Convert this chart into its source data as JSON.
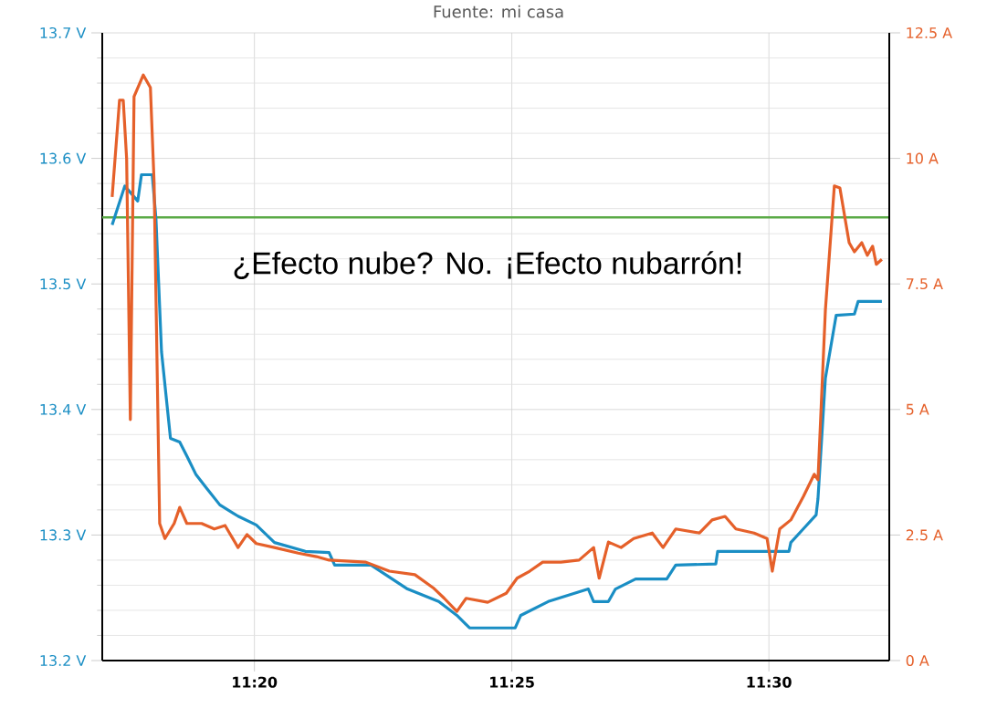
{
  "chart_data": {
    "type": "line",
    "annotations": [
      "Fuente: mi casa",
      "¿Efecto nube? No. ¡Efecto nubarrón!"
    ],
    "xlim": [
      11.284,
      11.539
    ],
    "xticks": [
      {
        "value": 11.3333,
        "label": "11:20"
      },
      {
        "value": 11.4167,
        "label": "11:25"
      },
      {
        "value": 11.5,
        "label": "11:30"
      }
    ],
    "ylim": [
      13.2,
      13.7
    ],
    "yticks": [
      {
        "value": 13.2,
        "label": "13.2 V"
      },
      {
        "value": 13.3,
        "label": "13.3 V"
      },
      {
        "value": 13.4,
        "label": "13.4 V"
      },
      {
        "value": 13.5,
        "label": "13.5 V"
      },
      {
        "value": 13.6,
        "label": "13.6 V"
      },
      {
        "value": 13.7,
        "label": "13.7 V"
      }
    ],
    "y2lim": [
      0,
      12.5
    ],
    "y2ticks": [
      {
        "value": 0,
        "label": "0 A"
      },
      {
        "value": 2.5,
        "label": "2.5 A"
      },
      {
        "value": 5,
        "label": "5 A"
      },
      {
        "value": 7.5,
        "label": "7.5 A"
      },
      {
        "value": 10,
        "label": "10 A"
      },
      {
        "value": 12.5,
        "label": "12.5 A"
      }
    ],
    "grid": true,
    "ref_lines": [
      {
        "axis": "y",
        "value": 13.553,
        "color": "#5aaa46"
      }
    ],
    "series": [
      {
        "color": "#1a8ec4",
        "x": [
          11.2872,
          11.2913,
          11.2955,
          11.2967,
          11.3002,
          11.3014,
          11.3032,
          11.3061,
          11.3091,
          11.3114,
          11.3144,
          11.3179,
          11.3221,
          11.328,
          11.3339,
          11.3398,
          11.3498,
          11.3575,
          11.3593,
          11.3711,
          11.3829,
          11.393,
          11.3989,
          11.403,
          11.4178,
          11.4196,
          11.4285,
          11.4415,
          11.4432,
          11.448,
          11.4503,
          11.4568,
          11.4669,
          11.4698,
          11.4828,
          11.4834,
          11.5065,
          11.5071,
          11.5112,
          11.5153,
          11.5159,
          11.5183,
          11.5218,
          11.5277,
          11.5289,
          11.5366
        ],
        "values": [
          13.547,
          13.578,
          13.566,
          13.587,
          13.587,
          13.552,
          13.446,
          13.377,
          13.374,
          13.363,
          13.348,
          13.337,
          13.324,
          13.315,
          13.308,
          13.294,
          13.287,
          13.286,
          13.276,
          13.276,
          13.257,
          13.247,
          13.236,
          13.226,
          13.226,
          13.236,
          13.247,
          13.257,
          13.247,
          13.247,
          13.257,
          13.265,
          13.265,
          13.276,
          13.277,
          13.287,
          13.287,
          13.294,
          13.305,
          13.316,
          13.329,
          13.425,
          13.475,
          13.476,
          13.486,
          13.486
        ]
      },
      {
        "color": "#e5602a",
        "axis": "y2",
        "x": [
          11.2872,
          11.2896,
          11.2908,
          11.2919,
          11.2931,
          11.2943,
          11.2973,
          11.2996,
          11.3008,
          11.3026,
          11.3043,
          11.3073,
          11.3091,
          11.3114,
          11.3162,
          11.3203,
          11.3238,
          11.328,
          11.3309,
          11.3339,
          11.3398,
          11.3475,
          11.3534,
          11.3575,
          11.3694,
          11.377,
          11.3853,
          11.3912,
          11.3948,
          11.3989,
          11.4019,
          11.4089,
          11.4149,
          11.4184,
          11.4225,
          11.4267,
          11.4326,
          11.4385,
          11.4432,
          11.445,
          11.448,
          11.4521,
          11.4562,
          11.4622,
          11.4657,
          11.4698,
          11.4775,
          11.4816,
          11.4858,
          11.4893,
          11.4952,
          11.4994,
          11.5011,
          11.5035,
          11.5071,
          11.5112,
          11.5147,
          11.5159,
          11.5183,
          11.5212,
          11.523,
          11.526,
          11.5277,
          11.5301,
          11.5319,
          11.5336,
          11.5348,
          11.5366
        ],
        "values": [
          9.23,
          11.16,
          11.16,
          9.99,
          4.8,
          11.23,
          11.66,
          11.41,
          9.52,
          2.73,
          2.43,
          2.73,
          3.05,
          2.73,
          2.73,
          2.62,
          2.69,
          2.25,
          2.51,
          2.33,
          2.25,
          2.14,
          2.07,
          2.0,
          1.96,
          1.78,
          1.71,
          1.45,
          1.24,
          0.98,
          1.24,
          1.16,
          1.34,
          1.64,
          1.78,
          1.96,
          1.96,
          2.0,
          2.25,
          1.64,
          2.36,
          2.25,
          2.43,
          2.54,
          2.25,
          2.62,
          2.54,
          2.8,
          2.87,
          2.62,
          2.54,
          2.43,
          1.78,
          2.62,
          2.8,
          3.27,
          3.71,
          3.6,
          6.98,
          9.45,
          9.41,
          8.32,
          8.14,
          8.32,
          8.07,
          8.25,
          7.89,
          7.99
        ]
      }
    ]
  }
}
